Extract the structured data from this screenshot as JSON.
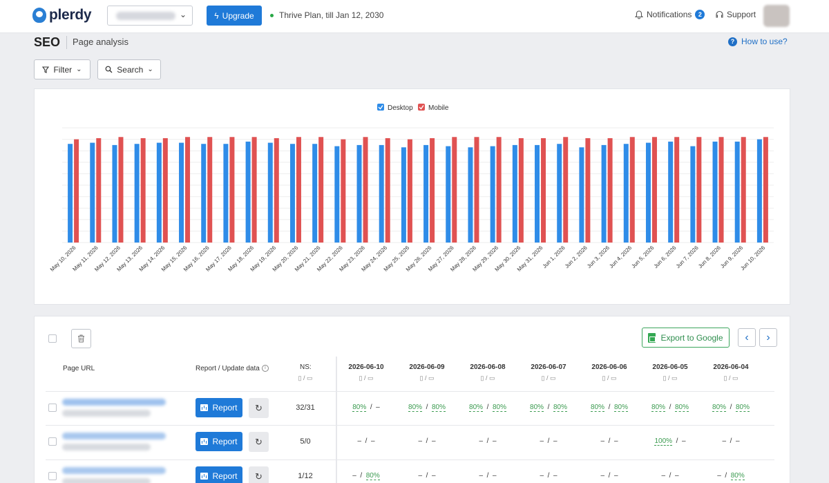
{
  "header": {
    "brand": "plerdy",
    "upgrade_label": "Upgrade",
    "plan_text": "Thrive Plan, till Jan 12, 2030",
    "notifications_label": "Notifications",
    "notifications_count": "2",
    "support_label": "Support"
  },
  "page": {
    "title": "SEO",
    "subtitle": "Page analysis",
    "how_to_use": "How to use?",
    "filter_label": "Filter",
    "search_label": "Search"
  },
  "colors": {
    "desktop": "#2f8ce8",
    "mobile": "#e05252",
    "accent": "#1f7ad8",
    "green": "#3a9a4f"
  },
  "chart_data": {
    "type": "bar",
    "title": "",
    "xlabel": "",
    "ylabel": "",
    "ylim": [
      0,
      100
    ],
    "grid": true,
    "legend_position": "top-center",
    "categories": [
      "May 10, 2026",
      "May 11, 2026",
      "May 12, 2026",
      "May 13, 2026",
      "May 14, 2026",
      "May 15, 2026",
      "May 16, 2026",
      "May 17, 2026",
      "May 18, 2026",
      "May 19, 2026",
      "May 20, 2026",
      "May 21, 2026",
      "May 22, 2026",
      "May 23, 2026",
      "May 24, 2026",
      "May 25, 2026",
      "May 26, 2026",
      "May 27, 2026",
      "May 28, 2026",
      "May 29, 2026",
      "May 30, 2026",
      "May 31, 2026",
      "Jun 1, 2026",
      "Jun 2, 2026",
      "Jun 3, 2026",
      "Jun 4, 2026",
      "Jun 5, 2026",
      "Jun 6, 2026",
      "Jun 7, 2026",
      "Jun 8, 2026",
      "Jun 9, 2026",
      "Jun 10, 2026"
    ],
    "series": [
      {
        "name": "Desktop",
        "values": [
          86,
          87,
          85,
          86,
          87,
          87,
          86,
          86,
          88,
          87,
          86,
          86,
          84,
          85,
          85,
          83,
          85,
          84,
          83,
          84,
          85,
          85,
          86,
          83,
          85,
          86,
          87,
          88,
          84,
          88,
          88,
          90
        ]
      },
      {
        "name": "Mobile",
        "values": [
          90,
          91,
          92,
          91,
          91,
          92,
          92,
          92,
          92,
          91,
          92,
          92,
          90,
          92,
          91,
          90,
          91,
          92,
          92,
          92,
          91,
          91,
          92,
          91,
          91,
          92,
          92,
          92,
          92,
          92,
          92,
          92
        ]
      }
    ]
  },
  "table": {
    "delete_icon": "trash-icon",
    "export_label": "Export to Google",
    "col_page_url": "Page URL",
    "col_report": "Report / Update data",
    "col_ns": "NS:",
    "device_icons": "▯ / ▭",
    "dates": [
      "2026-06-10",
      "2026-06-09",
      "2026-06-08",
      "2026-06-07",
      "2026-06-06",
      "2026-06-05",
      "2026-06-04"
    ],
    "report_label": "Report",
    "rows": [
      {
        "ns": "32/31",
        "cells": [
          [
            "80%",
            "–"
          ],
          [
            "80%",
            "80%"
          ],
          [
            "80%",
            "80%"
          ],
          [
            "80%",
            "80%"
          ],
          [
            "80%",
            "80%"
          ],
          [
            "80%",
            "80%"
          ],
          [
            "80%",
            "80%"
          ]
        ]
      },
      {
        "ns": "5/0",
        "cells": [
          [
            "–",
            "–"
          ],
          [
            "–",
            "–"
          ],
          [
            "–",
            "–"
          ],
          [
            "–",
            "–"
          ],
          [
            "–",
            "–"
          ],
          [
            "100%",
            "–"
          ],
          [
            "–",
            "–"
          ]
        ]
      },
      {
        "ns": "1/12",
        "cells": [
          [
            "–",
            "80%"
          ],
          [
            "–",
            "–"
          ],
          [
            "–",
            "–"
          ],
          [
            "–",
            "–"
          ],
          [
            "–",
            "–"
          ],
          [
            "–",
            "–"
          ],
          [
            "–",
            "80%"
          ]
        ]
      }
    ]
  }
}
